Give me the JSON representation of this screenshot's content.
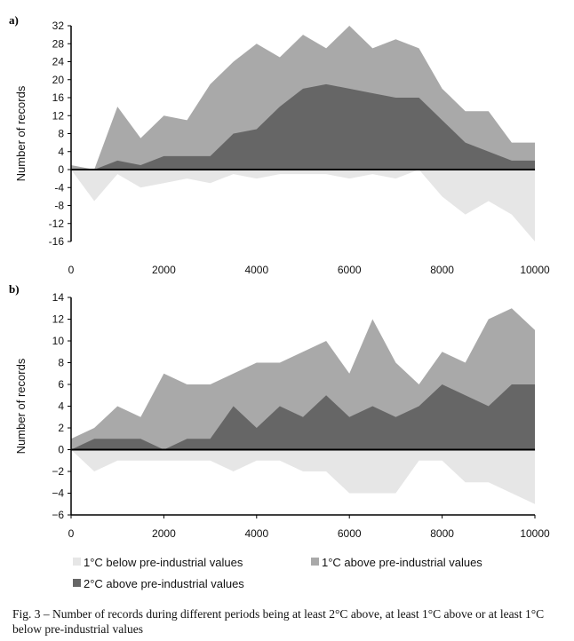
{
  "chart_data": [
    {
      "panel_label": "a)",
      "type": "area",
      "ylabel": "Number of records",
      "ylim": [
        -16,
        32
      ],
      "yticks": [
        32,
        28,
        24,
        20,
        16,
        12,
        8,
        4,
        0,
        -4,
        -8,
        -12,
        -16
      ],
      "xlim": [
        0,
        10000
      ],
      "xticks": [
        0,
        2000,
        4000,
        6000,
        8000,
        10000
      ],
      "x": [
        0,
        500,
        1000,
        1500,
        2000,
        2500,
        3000,
        3500,
        4000,
        4500,
        5000,
        5500,
        6000,
        6500,
        7000,
        7500,
        8000,
        8500,
        9000,
        9500,
        10000
      ],
      "series": [
        {
          "name": "1°C above pre-industrial values",
          "color": "#a9a9a9",
          "values": [
            1,
            0,
            14,
            7,
            12,
            11,
            19,
            24,
            28,
            25,
            30,
            27,
            32,
            27,
            29,
            27,
            18,
            13,
            13,
            6,
            6
          ]
        },
        {
          "name": "2°C above pre-industrial values",
          "color": "#666666",
          "values": [
            0,
            0,
            2,
            1,
            3,
            3,
            3,
            8,
            9,
            14,
            18,
            19,
            18,
            17,
            16,
            16,
            11,
            6,
            4,
            2,
            2
          ]
        },
        {
          "name": "1°C below pre-industrial values",
          "color": "#e6e6e6",
          "values": [
            0,
            -7,
            -1,
            -4,
            -3,
            -2,
            -3,
            -1,
            -2,
            -1,
            -1,
            -1,
            -2,
            -1,
            -2,
            0,
            -6,
            -10,
            -7,
            -10,
            -16
          ]
        }
      ]
    },
    {
      "panel_label": "b)",
      "type": "area",
      "ylabel": "Number of records",
      "ylim": [
        -6,
        14
      ],
      "yticks": [
        14,
        12,
        10,
        8,
        6,
        4,
        2,
        0,
        -2,
        -4,
        -6
      ],
      "xlim": [
        0,
        10000
      ],
      "xticks": [
        0,
        2000,
        4000,
        6000,
        8000,
        10000
      ],
      "x": [
        0,
        500,
        1000,
        1500,
        2000,
        2500,
        3000,
        3500,
        4000,
        4500,
        5000,
        5500,
        6000,
        6500,
        7000,
        7500,
        8000,
        8500,
        9000,
        9500,
        10000
      ],
      "series": [
        {
          "name": "1°C above pre-industrial values",
          "color": "#a9a9a9",
          "values": [
            1,
            2,
            4,
            3,
            7,
            6,
            6,
            7,
            8,
            8,
            9,
            10,
            7,
            12,
            8,
            6,
            9,
            8,
            12,
            13,
            11
          ]
        },
        {
          "name": "2°C above pre-industrial values",
          "color": "#666666",
          "values": [
            0,
            1,
            1,
            1,
            0,
            1,
            1,
            4,
            2,
            4,
            3,
            5,
            3,
            4,
            3,
            4,
            6,
            5,
            4,
            6,
            6
          ]
        },
        {
          "name": "1°C below pre-industrial values",
          "color": "#e6e6e6",
          "values": [
            0,
            -2,
            -1,
            -1,
            -1,
            -1,
            -1,
            -2,
            -1,
            -1,
            -2,
            -2,
            -4,
            -4,
            -4,
            -1,
            -1,
            -3,
            -3,
            -4,
            -5
          ]
        }
      ]
    }
  ],
  "legend": [
    {
      "label": "1°C below pre-industrial values",
      "color": "#e6e6e6"
    },
    {
      "label": "1°C above pre-industrial values",
      "color": "#a9a9a9"
    },
    {
      "label": "2°C above pre-industrial values",
      "color": "#666666"
    }
  ],
  "caption": "Fig. 3 – Number of records during different periods being at least 2°C above, at least 1°C above or at least 1°C below pre-industrial values"
}
